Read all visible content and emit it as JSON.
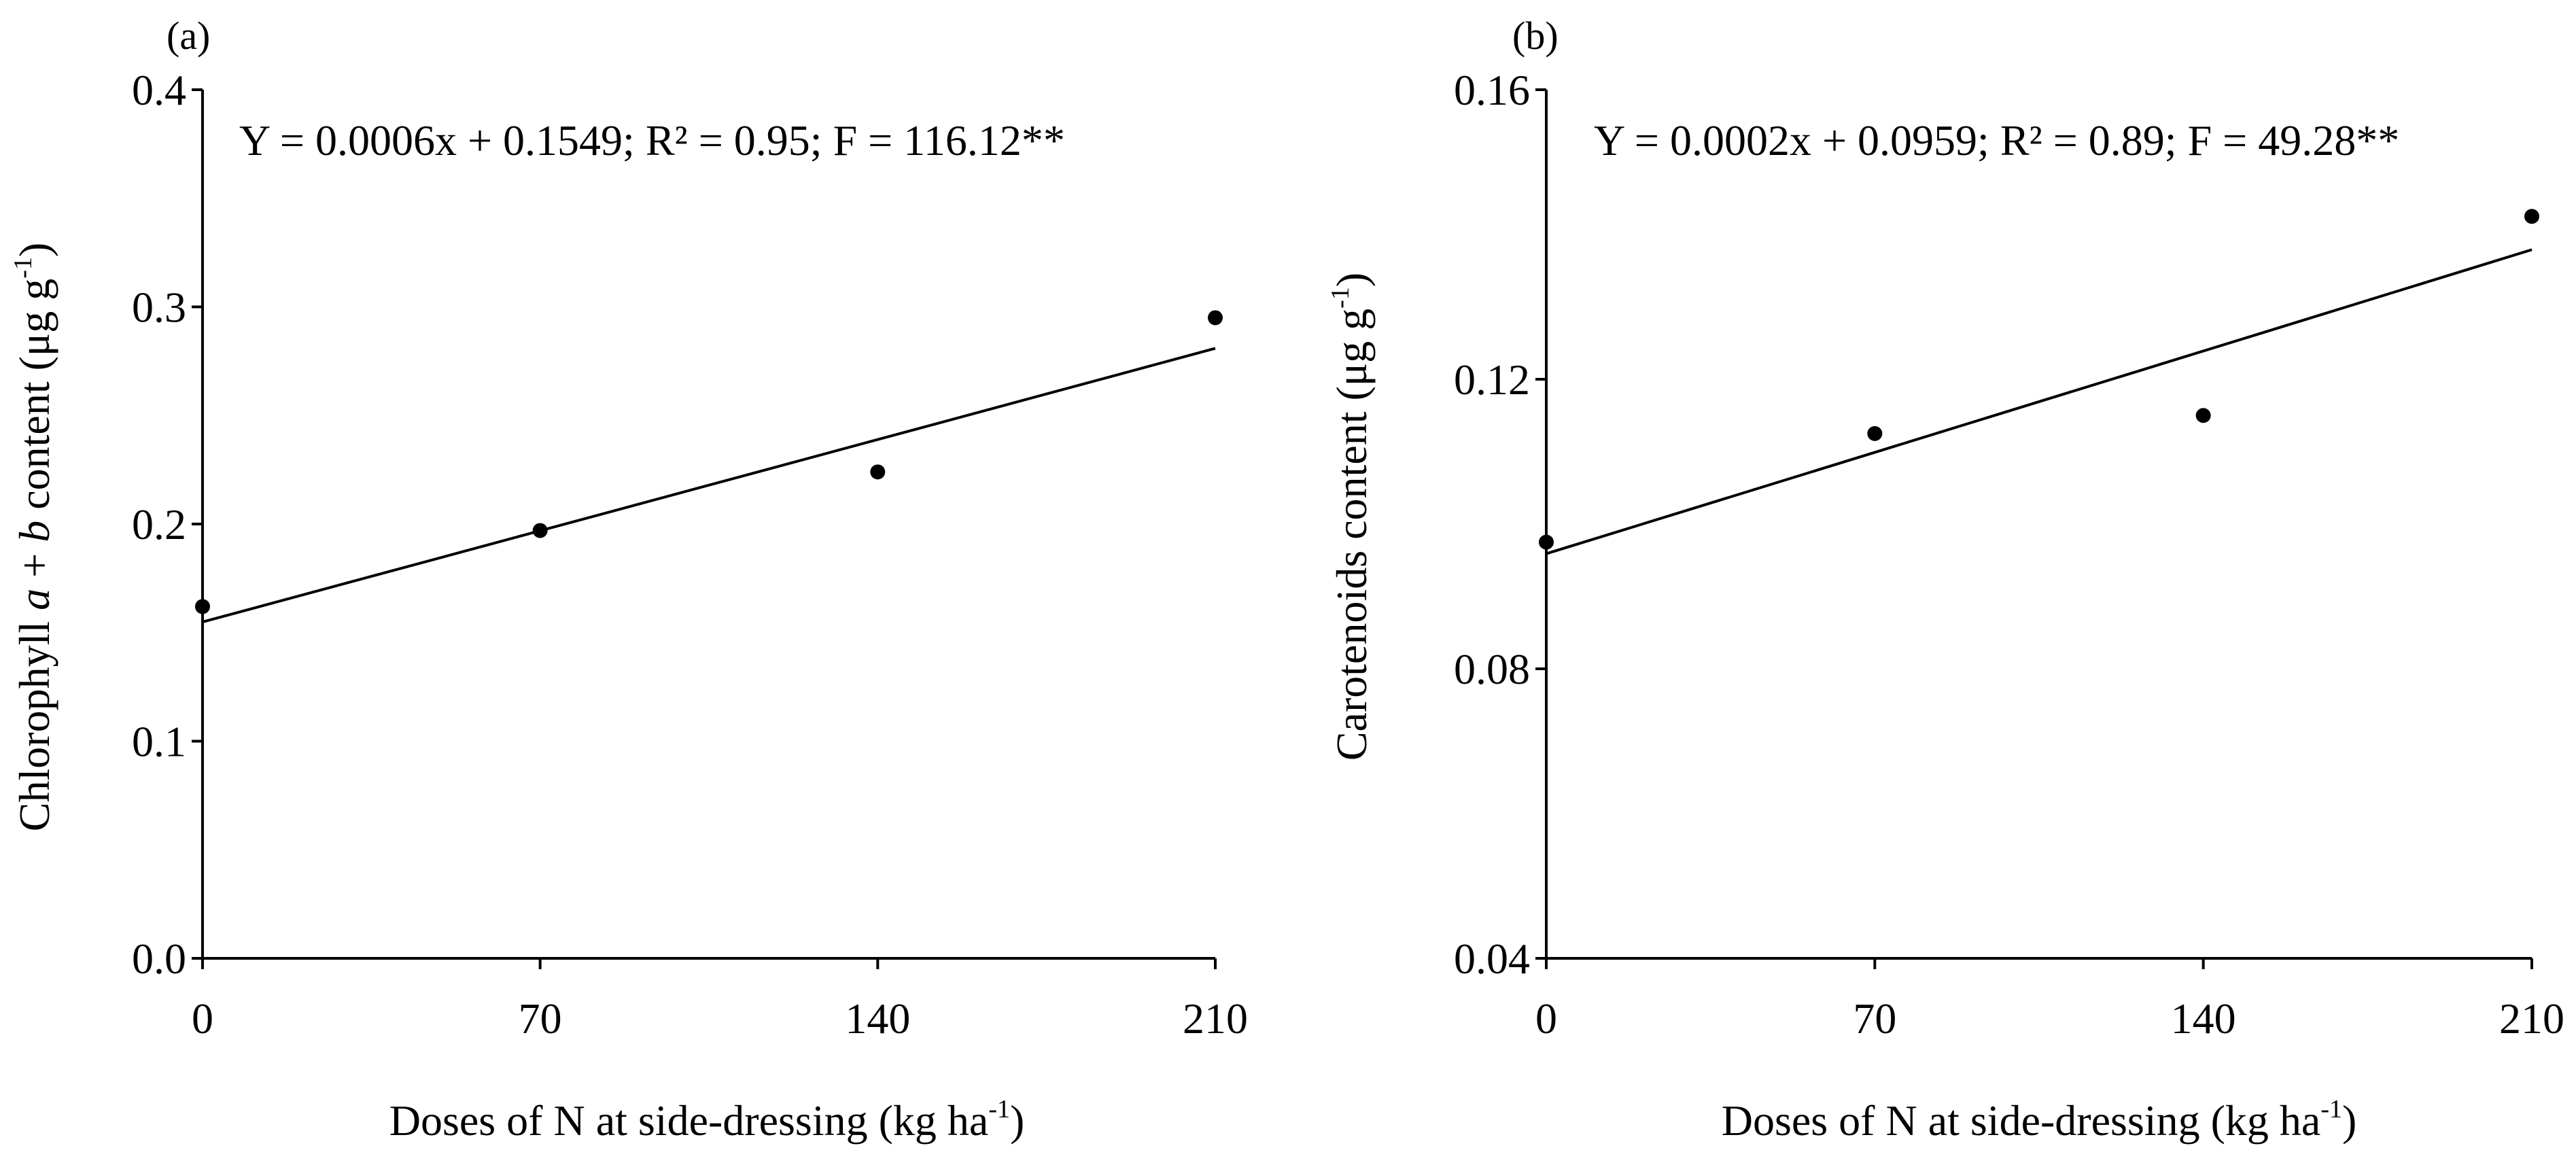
{
  "chart_data": [
    {
      "type": "scatter",
      "panel_label": "(a)",
      "xlabel_main": "Doses of N at side-dressing (kg ha",
      "xlabel_sup": "-1",
      "xlabel_end": ")",
      "ylabel_pre": "Chlorophyll ",
      "ylabel_a": "a",
      "ylabel_plus": " + ",
      "ylabel_b": "b",
      "ylabel_post": " content (μg g",
      "ylabel_sup": "-1",
      "ylabel_end": ")",
      "xlim": [
        0,
        210
      ],
      "ylim": [
        0.0,
        0.4
      ],
      "xticks": [
        "0",
        "70",
        "140",
        "210"
      ],
      "yticks": [
        "0.0",
        "0.1",
        "0.2",
        "0.3",
        "0.4"
      ],
      "equation": "Y = 0.0006x + 0.1549; R² = 0.95; F = 116.12**",
      "points": [
        {
          "x": 0,
          "y": 0.162
        },
        {
          "x": 70,
          "y": 0.197
        },
        {
          "x": 140,
          "y": 0.224
        },
        {
          "x": 210,
          "y": 0.295
        }
      ],
      "fit": {
        "slope": 0.0006,
        "intercept": 0.1549
      }
    },
    {
      "type": "scatter",
      "panel_label": "(b)",
      "xlabel_main": "Doses of N at side-dressing (kg ha",
      "xlabel_sup": "-1",
      "xlabel_end": ")",
      "ylabel_pre": "Carotenoids content (μg g",
      "ylabel_sup": "-1",
      "ylabel_end": ")",
      "xlim": [
        0,
        210
      ],
      "ylim": [
        0.04,
        0.16
      ],
      "xticks": [
        "0",
        "70",
        "140",
        "210"
      ],
      "yticks": [
        "0.04",
        "0.08",
        "0.12",
        "0.16"
      ],
      "equation": "Y = 0.0002x + 0.0959; R² = 0.89; F = 49.28**",
      "points": [
        {
          "x": 0,
          "y": 0.0975
        },
        {
          "x": 70,
          "y": 0.1125
        },
        {
          "x": 140,
          "y": 0.115
        },
        {
          "x": 210,
          "y": 0.1425
        }
      ],
      "fit": {
        "slope": 0.0002,
        "intercept": 0.0959
      }
    }
  ]
}
